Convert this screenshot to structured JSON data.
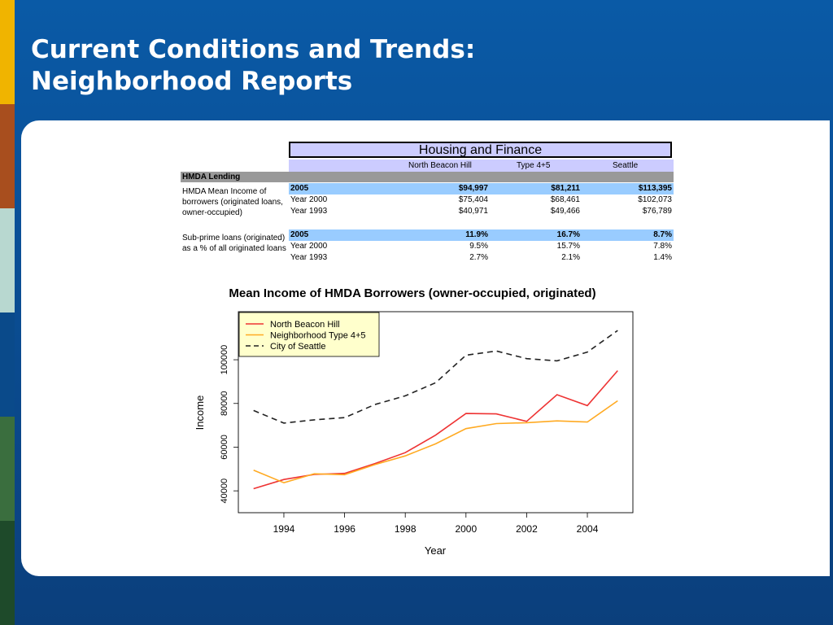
{
  "slide": {
    "title_line1": "Current Conditions and Trends:",
    "title_line2": "Neighborhood Reports",
    "colors": {
      "background": "#0a4f96",
      "panel": "#ffffff"
    }
  },
  "table": {
    "heading": "Housing and Finance",
    "columns": [
      "North Beacon Hill",
      "Type 4+5",
      "Seattle"
    ],
    "category": "HMDA Lending",
    "sections": [
      {
        "label": "HMDA Mean Income of borrowers (originated loans, owner-occupied)",
        "rows": [
          {
            "year": "2005",
            "values": [
              "$94,997",
              "$81,211",
              "$113,395"
            ],
            "highlight": true
          },
          {
            "year": "Year 2000",
            "values": [
              "$75,404",
              "$68,461",
              "$102,073"
            ],
            "highlight": false
          },
          {
            "year": "Year 1993",
            "values": [
              "$40,971",
              "$49,466",
              "$76,789"
            ],
            "highlight": false
          }
        ]
      },
      {
        "label": "Sub-prime loans (originated) as a % of all originated loans",
        "rows": [
          {
            "year": "2005",
            "values": [
              "11.9%",
              "16.7%",
              "8.7%"
            ],
            "highlight": true
          },
          {
            "year": "Year 2000",
            "values": [
              "9.5%",
              "15.7%",
              "7.8%"
            ],
            "highlight": false
          },
          {
            "year": "Year 1993",
            "values": [
              "2.7%",
              "2.1%",
              "1.4%"
            ],
            "highlight": false
          }
        ]
      }
    ],
    "colors": {
      "heading_bg": "#ccccff",
      "category_bg": "#999999",
      "highlight_bg": "#99ccff"
    }
  },
  "chart_data": {
    "type": "line",
    "title": "Mean Income of HMDA Borrowers (owner-occupied, originated)",
    "xlabel": "Year",
    "ylabel": "Income",
    "xlim": [
      1992.5,
      2005.5
    ],
    "ylim": [
      30000,
      122000
    ],
    "xticks": [
      1994,
      1996,
      1998,
      2000,
      2002,
      2004
    ],
    "yticks": [
      40000,
      60000,
      80000,
      100000
    ],
    "legend_position": "top-left",
    "grid": false,
    "x": [
      1993,
      1994,
      1995,
      1996,
      1997,
      1998,
      1999,
      2000,
      2001,
      2002,
      2003,
      2004,
      2005
    ],
    "series": [
      {
        "name": "North Beacon Hill",
        "color": "#ee3333",
        "dash": "solid",
        "values": [
          40971,
          45200,
          47500,
          48000,
          52500,
          57500,
          65500,
          75404,
          75200,
          71800,
          84000,
          79000,
          94997
        ]
      },
      {
        "name": "Neighborhood Type 4+5",
        "color": "#ffaa22",
        "dash": "solid",
        "values": [
          49466,
          43700,
          47800,
          47400,
          52000,
          56000,
          61500,
          68461,
          70800,
          71200,
          72000,
          71500,
          81211
        ]
      },
      {
        "name": "City of Seattle",
        "color": "#222222",
        "dash": "dashed",
        "values": [
          76789,
          71000,
          72500,
          73500,
          79500,
          83500,
          89500,
          102073,
          104000,
          100500,
          99500,
          103500,
          113395
        ]
      }
    ]
  }
}
